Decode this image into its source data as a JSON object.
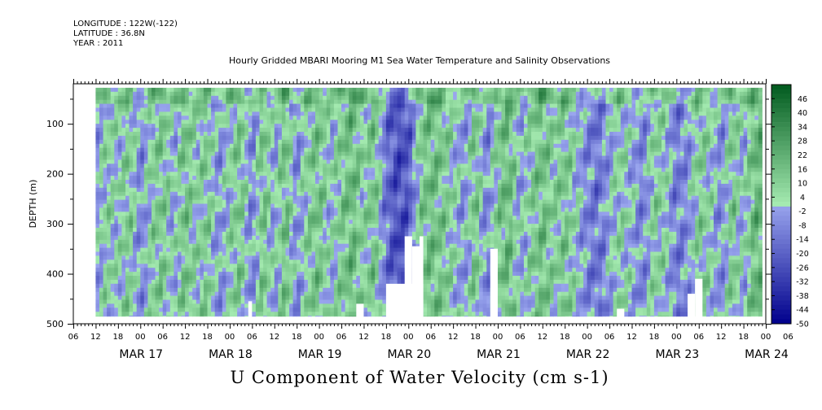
{
  "header": {
    "longitude": "LONGITUDE : 122W(-122)",
    "latitude": "LATITUDE : 36.8N",
    "year": "YEAR : 2011"
  },
  "colors": {
    "low": "#00008c",
    "mid_low": "#9aa6ee",
    "mid_high": "#a4eab0",
    "high": "#005a1e",
    "missing": "#ffffff"
  },
  "chart_data": {
    "type": "heatmap",
    "title": "Hourly Gridded MBARI Mooring M1 Sea Water Temperature and Salinity Observations",
    "xlabel": "U Component of Water Velocity (cm s-1)",
    "ylabel": "DEPTH (m)",
    "y_reversed": true,
    "ylim": [
      20,
      500
    ],
    "y_ticks": [
      100,
      200,
      300,
      400,
      500
    ],
    "x_range_hours": [
      0,
      186
    ],
    "x_hour_ticks": [
      "06",
      "12",
      "18",
      "00",
      "06",
      "12",
      "18",
      "00",
      "06",
      "12",
      "18",
      "00",
      "06",
      "12",
      "18",
      "00",
      "06",
      "12",
      "18",
      "00",
      "06",
      "12",
      "18",
      "00",
      "06",
      "12",
      "18",
      "00",
      "06",
      "12",
      "18",
      "00",
      "06"
    ],
    "x_date_labels": [
      "MAR 17",
      "MAR 18",
      "MAR 19",
      "MAR 20",
      "MAR 21",
      "MAR 22",
      "MAR 23",
      "MAR 24"
    ],
    "colorbar_labels": [
      "46",
      "40",
      "34",
      "28",
      "22",
      "16",
      "10",
      "4",
      "-2",
      "-8",
      "-14",
      "-20",
      "-26",
      "-32",
      "-38",
      "-44",
      "-50"
    ],
    "colorbar_range": [
      -50,
      52
    ],
    "data_start_hour": 6,
    "data_end_hour": 185,
    "data_depth_range": [
      28,
      485
    ],
    "column_means": [
      {
        "h": 6,
        "v": -4
      },
      {
        "h": 9,
        "v": 6
      },
      {
        "h": 12,
        "v": 2
      },
      {
        "h": 15,
        "v": 10
      },
      {
        "h": 18,
        "v": -8
      },
      {
        "h": 21,
        "v": 6
      },
      {
        "h": 24,
        "v": 12
      },
      {
        "h": 27,
        "v": -2
      },
      {
        "h": 30,
        "v": 14
      },
      {
        "h": 33,
        "v": 4
      },
      {
        "h": 36,
        "v": 10
      },
      {
        "h": 39,
        "v": -6
      },
      {
        "h": 42,
        "v": 4
      },
      {
        "h": 45,
        "v": 12
      },
      {
        "h": 48,
        "v": -10
      },
      {
        "h": 51,
        "v": 14
      },
      {
        "h": 54,
        "v": -4
      },
      {
        "h": 57,
        "v": 16
      },
      {
        "h": 60,
        "v": -8
      },
      {
        "h": 63,
        "v": 8
      },
      {
        "h": 66,
        "v": 14
      },
      {
        "h": 69,
        "v": 0
      },
      {
        "h": 72,
        "v": 10
      },
      {
        "h": 75,
        "v": 18
      },
      {
        "h": 78,
        "v": 4
      },
      {
        "h": 81,
        "v": 14
      },
      {
        "h": 84,
        "v": -14
      },
      {
        "h": 87,
        "v": -26
      },
      {
        "h": 90,
        "v": -22
      },
      {
        "h": 93,
        "v": 8
      },
      {
        "h": 96,
        "v": 16
      },
      {
        "h": 99,
        "v": 12
      },
      {
        "h": 102,
        "v": 4
      },
      {
        "h": 105,
        "v": -6
      },
      {
        "h": 108,
        "v": 14
      },
      {
        "h": 111,
        "v": -10
      },
      {
        "h": 114,
        "v": 10
      },
      {
        "h": 117,
        "v": 18
      },
      {
        "h": 120,
        "v": -4
      },
      {
        "h": 123,
        "v": 8
      },
      {
        "h": 126,
        "v": 16
      },
      {
        "h": 129,
        "v": 6
      },
      {
        "h": 132,
        "v": 12
      },
      {
        "h": 135,
        "v": 2
      },
      {
        "h": 138,
        "v": -8
      },
      {
        "h": 141,
        "v": -14
      },
      {
        "h": 144,
        "v": -2
      },
      {
        "h": 147,
        "v": 6
      },
      {
        "h": 150,
        "v": 0
      },
      {
        "h": 153,
        "v": -10
      },
      {
        "h": 156,
        "v": 8
      },
      {
        "h": 159,
        "v": 4
      },
      {
        "h": 162,
        "v": -12
      },
      {
        "h": 165,
        "v": -6
      },
      {
        "h": 168,
        "v": 10
      },
      {
        "h": 171,
        "v": 4
      },
      {
        "h": 174,
        "v": -8
      },
      {
        "h": 177,
        "v": 12
      },
      {
        "h": 180,
        "v": -2
      },
      {
        "h": 183,
        "v": 18
      }
    ],
    "missing_regions": [
      {
        "h0": 84,
        "h1": 94,
        "d_top": 420
      },
      {
        "h0": 89,
        "h1": 91,
        "d_top": 325
      },
      {
        "h0": 93,
        "h1": 94,
        "d_top": 325
      },
      {
        "h0": 91,
        "h1": 93,
        "d_top": 345
      },
      {
        "h0": 112,
        "h1": 114,
        "d_top": 350
      },
      {
        "h0": 167,
        "h1": 169,
        "d_top": 410
      },
      {
        "h0": 165,
        "h1": 167,
        "d_top": 440
      },
      {
        "h0": 146,
        "h1": 148,
        "d_top": 470
      },
      {
        "h0": 76,
        "h1": 78,
        "d_top": 460
      },
      {
        "h0": 47,
        "h1": 48,
        "d_top": 455
      }
    ]
  }
}
